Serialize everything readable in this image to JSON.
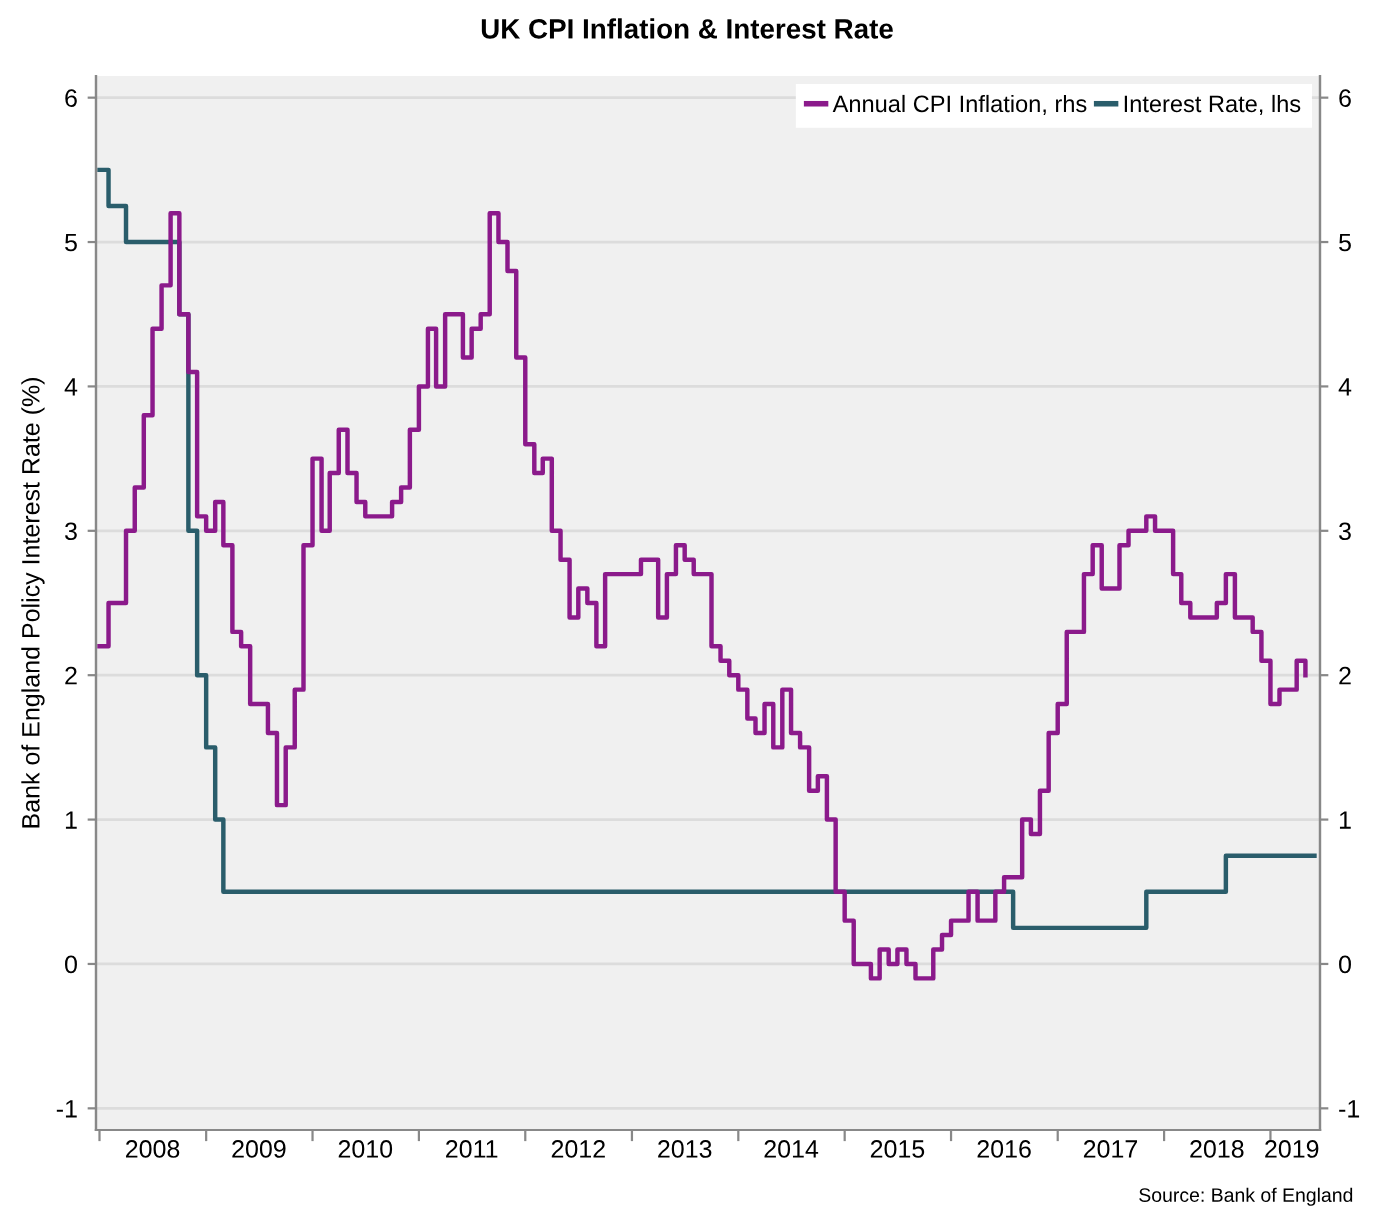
{
  "chart_data": {
    "type": "step",
    "title": "UK CPI Inflation & Interest Rate",
    "ylabel": "Bank of England Policy Interest Rate (%)",
    "annotations": [
      "Source: Bank of England"
    ],
    "xlim": [
      "2007-12-20",
      "2019-06-20"
    ],
    "xticks": [
      {
        "value": "2008-01-01",
        "label": null
      },
      {
        "value": "2009-01-01",
        "label": null
      },
      {
        "value": "2010-01-01",
        "label": null
      },
      {
        "value": "2011-01-01",
        "label": null
      },
      {
        "value": "2012-01-01",
        "label": null
      },
      {
        "value": "2013-01-01",
        "label": null
      },
      {
        "value": "2014-01-01",
        "label": null
      },
      {
        "value": "2015-01-01",
        "label": null
      },
      {
        "value": "2016-01-01",
        "label": null
      },
      {
        "value": "2017-01-01",
        "label": null
      },
      {
        "value": "2018-01-01",
        "label": null
      },
      {
        "value": "2019-01-01",
        "label": null
      },
      {
        "value": "2008-07-01",
        "label": "2008"
      },
      {
        "value": "2009-07-01",
        "label": "2009"
      },
      {
        "value": "2010-07-01",
        "label": "2010"
      },
      {
        "value": "2011-07-01",
        "label": "2011"
      },
      {
        "value": "2012-07-01",
        "label": "2012"
      },
      {
        "value": "2013-07-01",
        "label": "2013"
      },
      {
        "value": "2014-07-01",
        "label": "2014"
      },
      {
        "value": "2015-07-01",
        "label": "2015"
      },
      {
        "value": "2016-07-01",
        "label": "2016"
      },
      {
        "value": "2017-07-01",
        "label": "2017"
      },
      {
        "value": "2018-07-01",
        "label": "2018"
      },
      {
        "value": "2019-03-15",
        "label": "2019"
      }
    ],
    "ylim": [
      -1.15,
      6.15
    ],
    "yticks": [
      -1,
      0,
      1,
      2,
      3,
      4,
      5,
      6
    ],
    "y2lim": [
      -1.15,
      6.15
    ],
    "y2ticks": [
      -1,
      0,
      1,
      2,
      3,
      4,
      5,
      6
    ],
    "grid": "y",
    "legend": "top right",
    "series": [
      {
        "name": "Annual CPI Inflation, rhs",
        "color": "#8b1a8b",
        "axis": "y2",
        "x": [
          "2008-01",
          "2008-02",
          "2008-03",
          "2008-04",
          "2008-05",
          "2008-06",
          "2008-07",
          "2008-08",
          "2008-09",
          "2008-10",
          "2008-11",
          "2008-12",
          "2009-01",
          "2009-02",
          "2009-03",
          "2009-04",
          "2009-05",
          "2009-06",
          "2009-07",
          "2009-08",
          "2009-09",
          "2009-10",
          "2009-11",
          "2009-12",
          "2010-01",
          "2010-02",
          "2010-03",
          "2010-04",
          "2010-05",
          "2010-06",
          "2010-07",
          "2010-08",
          "2010-09",
          "2010-10",
          "2010-11",
          "2010-12",
          "2011-01",
          "2011-02",
          "2011-03",
          "2011-04",
          "2011-05",
          "2011-06",
          "2011-07",
          "2011-08",
          "2011-09",
          "2011-10",
          "2011-11",
          "2011-12",
          "2012-01",
          "2012-02",
          "2012-03",
          "2012-04",
          "2012-05",
          "2012-06",
          "2012-07",
          "2012-08",
          "2012-09",
          "2012-10",
          "2012-11",
          "2012-12",
          "2013-01",
          "2013-02",
          "2013-03",
          "2013-04",
          "2013-05",
          "2013-06",
          "2013-07",
          "2013-08",
          "2013-09",
          "2013-10",
          "2013-11",
          "2013-12",
          "2014-01",
          "2014-02",
          "2014-03",
          "2014-04",
          "2014-05",
          "2014-06",
          "2014-07",
          "2014-08",
          "2014-09",
          "2014-10",
          "2014-11",
          "2014-12",
          "2015-01",
          "2015-02",
          "2015-03",
          "2015-04",
          "2015-05",
          "2015-06",
          "2015-07",
          "2015-08",
          "2015-09",
          "2015-10",
          "2015-11",
          "2015-12",
          "2016-01",
          "2016-02",
          "2016-03",
          "2016-04",
          "2016-05",
          "2016-06",
          "2016-07",
          "2016-08",
          "2016-09",
          "2016-10",
          "2016-11",
          "2016-12",
          "2017-01",
          "2017-02",
          "2017-03",
          "2017-04",
          "2017-05",
          "2017-06",
          "2017-07",
          "2017-08",
          "2017-09",
          "2017-10",
          "2017-11",
          "2017-12",
          "2018-01",
          "2018-02",
          "2018-03",
          "2018-04",
          "2018-05",
          "2018-06",
          "2018-07",
          "2018-08",
          "2018-09",
          "2018-10",
          "2018-11",
          "2018-12",
          "2019-01",
          "2019-02",
          "2019-03",
          "2019-04",
          "2019-05"
        ],
        "values": [
          2.2,
          2.5,
          2.5,
          3.0,
          3.3,
          3.8,
          4.4,
          4.7,
          5.2,
          4.5,
          4.1,
          3.1,
          3.0,
          3.2,
          2.9,
          2.3,
          2.2,
          1.8,
          1.8,
          1.6,
          1.1,
          1.5,
          1.9,
          2.9,
          3.5,
          3.0,
          3.4,
          3.7,
          3.4,
          3.2,
          3.1,
          3.1,
          3.1,
          3.2,
          3.3,
          3.7,
          4.0,
          4.4,
          4.0,
          4.5,
          4.5,
          4.2,
          4.4,
          4.5,
          5.2,
          5.0,
          4.8,
          4.2,
          3.6,
          3.4,
          3.5,
          3.0,
          2.8,
          2.4,
          2.6,
          2.5,
          2.2,
          2.7,
          2.7,
          2.7,
          2.7,
          2.8,
          2.8,
          2.4,
          2.7,
          2.9,
          2.8,
          2.7,
          2.7,
          2.2,
          2.1,
          2.0,
          1.9,
          1.7,
          1.6,
          1.8,
          1.5,
          1.9,
          1.6,
          1.5,
          1.2,
          1.3,
          1.0,
          0.5,
          0.3,
          0.0,
          0.0,
          -0.1,
          0.1,
          0.0,
          0.1,
          0.0,
          -0.1,
          -0.1,
          0.1,
          0.2,
          0.3,
          0.3,
          0.5,
          0.3,
          0.3,
          0.5,
          0.6,
          0.6,
          1.0,
          0.9,
          1.2,
          1.6,
          1.8,
          2.3,
          2.3,
          2.7,
          2.9,
          2.6,
          2.6,
          2.9,
          3.0,
          3.0,
          3.1,
          3.0,
          3.0,
          2.7,
          2.5,
          2.4,
          2.4,
          2.4,
          2.5,
          2.7,
          2.4,
          2.4,
          2.3,
          2.1,
          1.8,
          1.9,
          1.9,
          2.1,
          2.0
        ]
      },
      {
        "name": "Interest Rate, lhs",
        "color": "#2a5d6b",
        "x": [
          "2008-01",
          "2008-02",
          "2008-04",
          "2008-10",
          "2008-11",
          "2008-12",
          "2009-01",
          "2009-02",
          "2009-03",
          "2016-08",
          "2017-11",
          "2018-08",
          "2019-06"
        ],
        "values": [
          5.5,
          5.25,
          5.0,
          4.5,
          3.0,
          2.0,
          1.5,
          1.0,
          0.5,
          0.25,
          0.5,
          0.75,
          0.75
        ]
      }
    ]
  }
}
